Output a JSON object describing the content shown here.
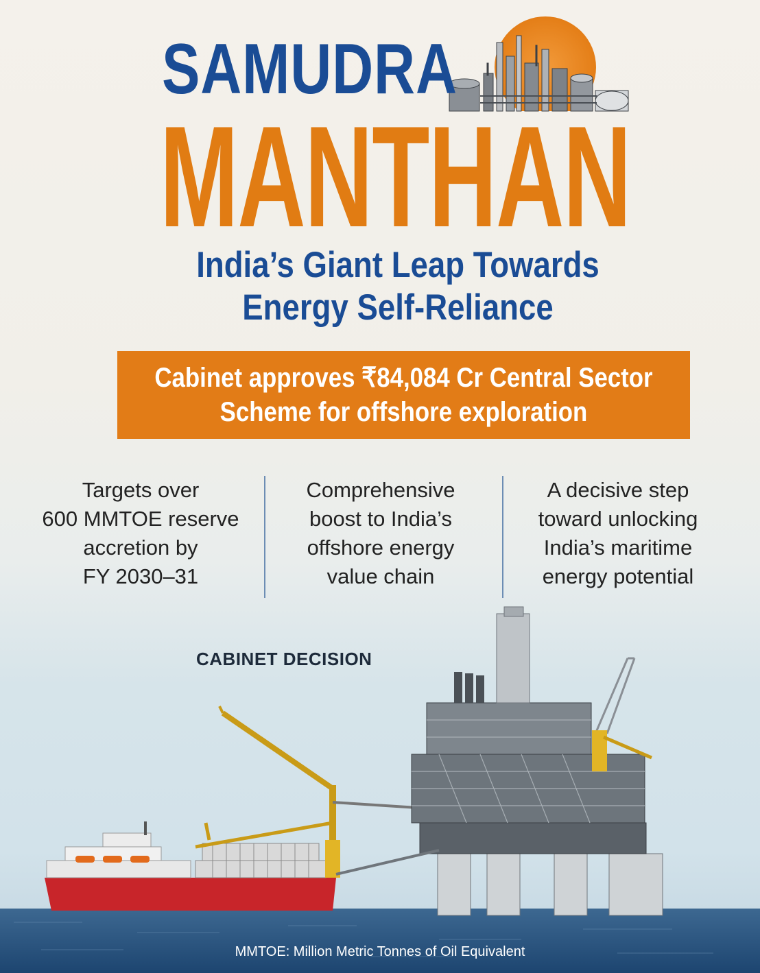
{
  "title": {
    "line1": "SAMUDRA",
    "line2": "MANTHAN",
    "subtitle_line1": "India’s Giant Leap Towards",
    "subtitle_line2": "Energy Self-Reliance"
  },
  "banner": {
    "line1": "Cabinet approves ₹84,084 Cr Central Sector",
    "line2": "Scheme for offshore exploration"
  },
  "points": [
    {
      "lines": [
        "Targets over",
        "600 MMTOE reserve",
        "accretion by",
        "FY 2030–31"
      ]
    },
    {
      "lines": [
        "Comprehensive",
        "boost to India’s",
        "offshore energy",
        "value chain"
      ]
    },
    {
      "lines": [
        "A decisive step",
        "toward unlocking",
        "India’s maritime",
        "energy potential"
      ]
    }
  ],
  "label": "CABINET DECISION",
  "footnote": "MMTOE: Million Metric Tonnes of Oil Equivalent",
  "colors": {
    "blue": "#1a4c95",
    "orange": "#e27c17",
    "sea": "#2f5c86",
    "vessel_red": "#c8252a",
    "crane_yellow": "#e2b526"
  },
  "icons": [
    "refinery-illustration",
    "offshore-platform-illustration",
    "supply-vessel-illustration"
  ]
}
